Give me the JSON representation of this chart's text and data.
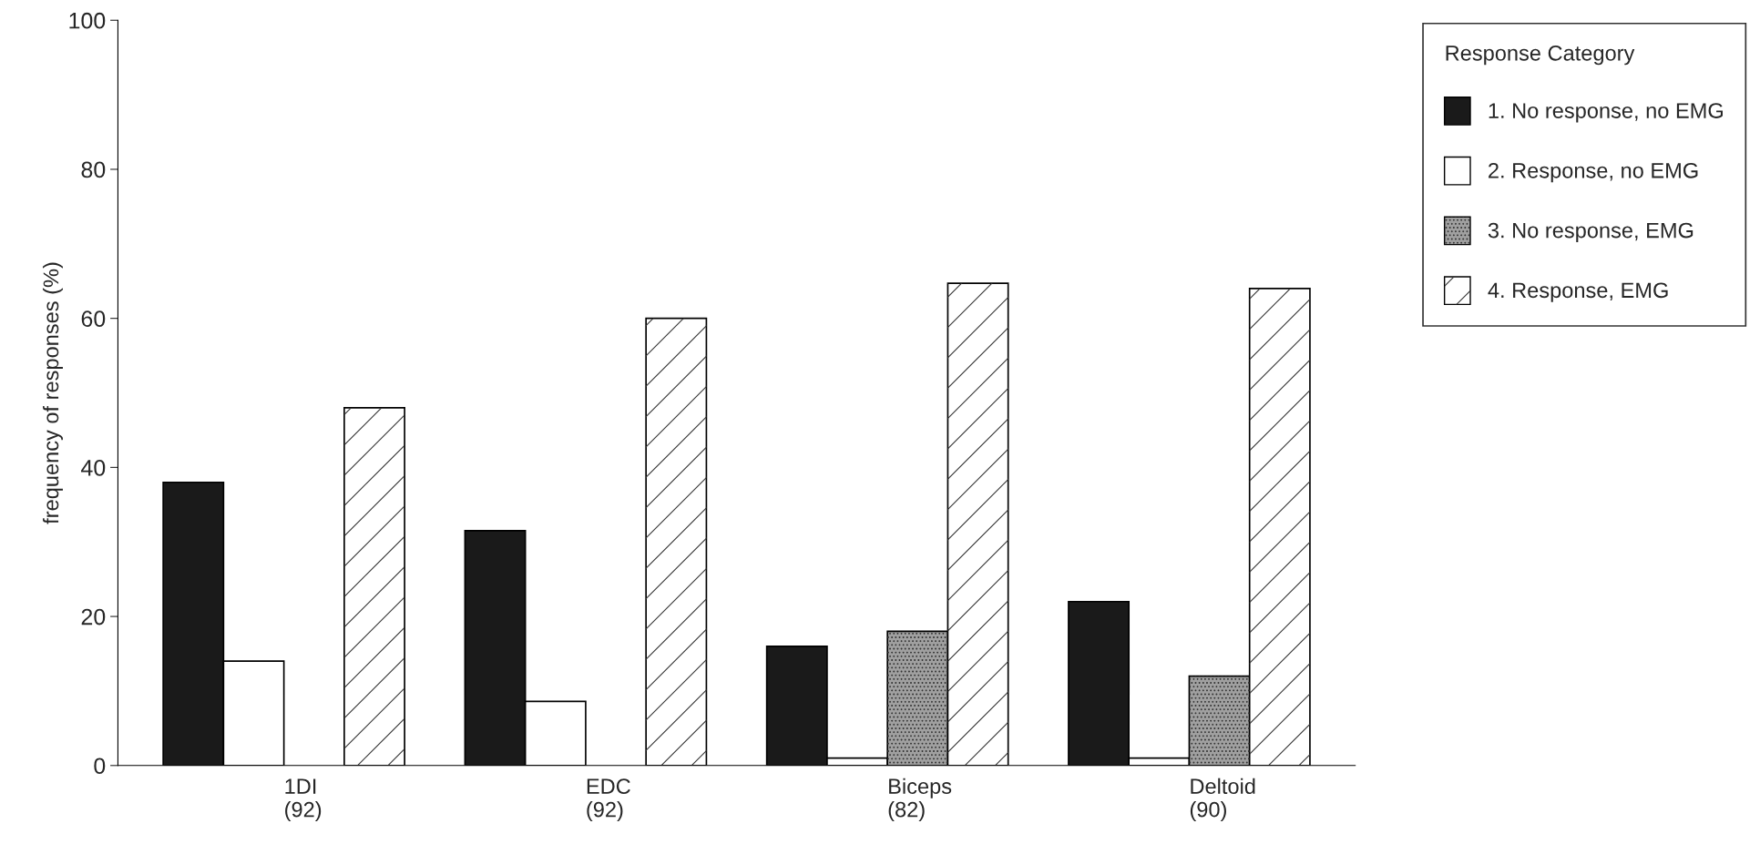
{
  "chart_data": {
    "type": "bar",
    "ylabel": "frequency of responses (%)",
    "legend_title": "Response Category",
    "categories": [
      "1DI\n(92)",
      "EDC\n(92)",
      "Biceps\n(82)",
      "Deltoid\n(90)"
    ],
    "series": [
      {
        "name": "1. No response, no EMG",
        "color": "#1a1a1a",
        "values": [
          38,
          31.5,
          16,
          22
        ]
      },
      {
        "name": "2. Response, no EMG",
        "color": "#ffffff",
        "values": [
          14,
          8.6,
          1,
          1
        ]
      },
      {
        "name": "3. No response, EMG",
        "color": "#a0a0a0",
        "values": [
          0,
          0,
          18,
          12
        ]
      },
      {
        "name": "4. Response, EMG",
        "color": "#ffffff",
        "values": [
          48,
          60,
          64.7,
          64
        ]
      }
    ],
    "ylim": [
      0,
      100
    ],
    "yticks": [
      0,
      20,
      40,
      60,
      80,
      100
    ],
    "grid": false,
    "legend": "top right"
  }
}
